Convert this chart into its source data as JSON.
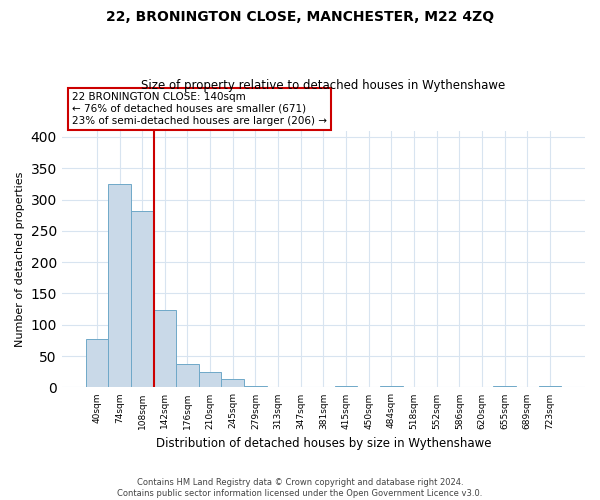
{
  "title": "22, BRONINGTON CLOSE, MANCHESTER, M22 4ZQ",
  "subtitle": "Size of property relative to detached houses in Wythenshawe",
  "xlabel": "Distribution of detached houses by size in Wythenshawe",
  "ylabel": "Number of detached properties",
  "bar_labels": [
    "40sqm",
    "74sqm",
    "108sqm",
    "142sqm",
    "176sqm",
    "210sqm",
    "245sqm",
    "279sqm",
    "313sqm",
    "347sqm",
    "381sqm",
    "415sqm",
    "450sqm",
    "484sqm",
    "518sqm",
    "552sqm",
    "586sqm",
    "620sqm",
    "655sqm",
    "689sqm",
    "723sqm"
  ],
  "bar_values": [
    77,
    325,
    281,
    123,
    37,
    24,
    14,
    3,
    0,
    0,
    0,
    3,
    0,
    3,
    0,
    0,
    0,
    0,
    3,
    0,
    3
  ],
  "bar_color": "#c9d9e8",
  "bar_edge_color": "#6fa8c8",
  "vline_x": 2.5,
  "vline_color": "#cc0000",
  "annotation_title": "22 BRONINGTON CLOSE: 140sqm",
  "annotation_line1": "← 76% of detached houses are smaller (671)",
  "annotation_line2": "23% of semi-detached houses are larger (206) →",
  "box_edge_color": "#cc0000",
  "ylim": [
    0,
    410
  ],
  "yticks": [
    0,
    50,
    100,
    150,
    200,
    250,
    300,
    350,
    400
  ],
  "footer_line1": "Contains HM Land Registry data © Crown copyright and database right 2024.",
  "footer_line2": "Contains public sector information licensed under the Open Government Licence v3.0.",
  "background_color": "#ffffff",
  "grid_color": "#d8e4f0"
}
